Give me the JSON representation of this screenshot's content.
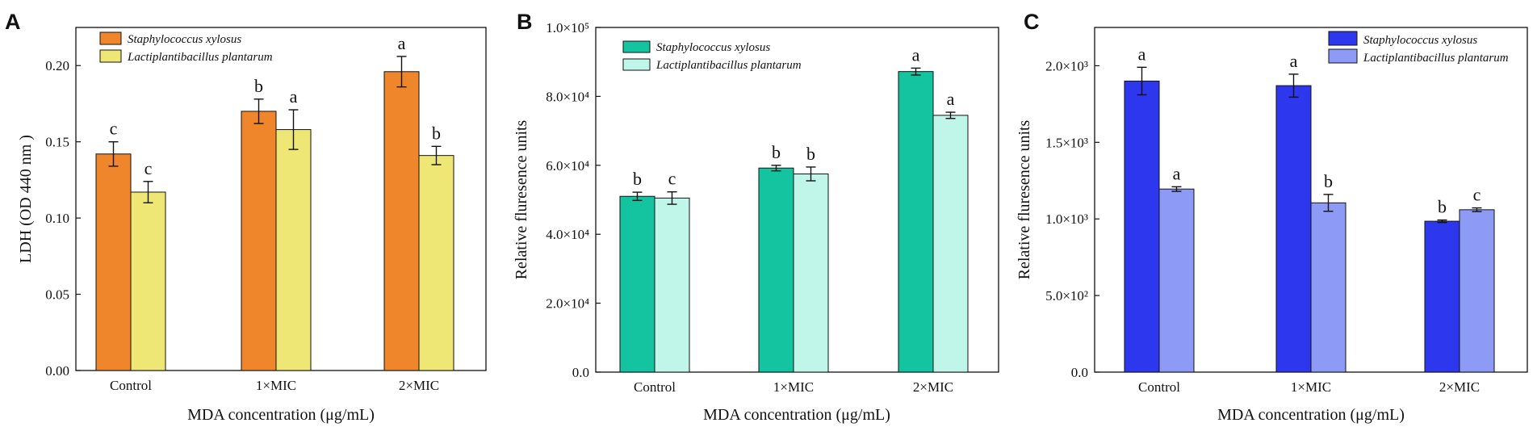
{
  "chart_data": [
    {
      "panel": "A",
      "type": "bar",
      "categories": [
        "Control",
        "1×MIC",
        "2×MIC"
      ],
      "xlabel": "MDA concentration (μg/mL)",
      "ylabel": "LDH (OD 440 nm )",
      "ylim": [
        0,
        0.225
      ],
      "yticks": [
        {
          "value": 0,
          "label": "0.00"
        },
        {
          "value": 0.05,
          "label": "0.05"
        },
        {
          "value": 0.1,
          "label": "0.10"
        },
        {
          "value": 0.15,
          "label": "0.15"
        },
        {
          "value": 0.2,
          "label": "0.20"
        }
      ],
      "legend_position": "top-left",
      "series": [
        {
          "name": "Staphylococcus xylosus",
          "color": "#f0862c",
          "values": [
            0.142,
            0.17,
            0.196
          ],
          "errors": [
            0.008,
            0.008,
            0.01
          ],
          "letters": [
            "c",
            "b",
            "a"
          ]
        },
        {
          "name": "Lactiplantibacillus plantarum",
          "color": "#efe775",
          "values": [
            0.117,
            0.158,
            0.141
          ],
          "errors": [
            0.007,
            0.013,
            0.006
          ],
          "letters": [
            "c",
            "a",
            "b"
          ]
        }
      ]
    },
    {
      "panel": "B",
      "type": "bar",
      "categories": [
        "Control",
        "1×MIC",
        "2×MIC"
      ],
      "xlabel": "MDA concentration (μg/mL)",
      "ylabel": "Relative fluresence units",
      "ylim": [
        0,
        100000
      ],
      "yticks": [
        {
          "value": 0,
          "label": "0.0"
        },
        {
          "value": 20000,
          "label": "2.0×10⁴"
        },
        {
          "value": 40000,
          "label": "4.0×10⁴"
        },
        {
          "value": 60000,
          "label": "6.0×10⁴"
        },
        {
          "value": 80000,
          "label": "8.0×10⁴"
        },
        {
          "value": 100000,
          "label": "1.0×10⁵"
        }
      ],
      "legend_position": "top-left",
      "series": [
        {
          "name": "Staphylococcus xylosus",
          "color": "#14c4a0",
          "values": [
            51000,
            59200,
            87200
          ],
          "errors": [
            1200,
            800,
            1000
          ],
          "letters": [
            "b",
            "b",
            "a"
          ]
        },
        {
          "name": "Lactiplantibacillus plantarum",
          "color": "#c0f5e9",
          "values": [
            50500,
            57500,
            74500
          ],
          "errors": [
            1800,
            2000,
            900
          ],
          "letters": [
            "c",
            "b",
            "a"
          ]
        }
      ]
    },
    {
      "panel": "C",
      "type": "bar",
      "categories": [
        "Control",
        "1×MIC",
        "2×MIC"
      ],
      "xlabel": "MDA concentration (μg/mL)",
      "ylabel": "Relative fluresence units",
      "ylim": [
        0,
        2250
      ],
      "yticks": [
        {
          "value": 0,
          "label": "0.0"
        },
        {
          "value": 500,
          "label": "5.0×10²"
        },
        {
          "value": 1000,
          "label": "1.0×10³"
        },
        {
          "value": 1500,
          "label": "1.5×10³"
        },
        {
          "value": 2000,
          "label": "2.0×10³"
        }
      ],
      "legend_position": "top-right",
      "series": [
        {
          "name": "Staphylococcus xylosus",
          "color": "#2c37ee",
          "values": [
            1900,
            1870,
            985
          ],
          "errors": [
            90,
            75,
            8
          ],
          "letters": [
            "a",
            "a",
            "b"
          ]
        },
        {
          "name": "Lactiplantibacillus plantarum",
          "color": "#8d9bf6",
          "values": [
            1195,
            1105,
            1060
          ],
          "errors": [
            15,
            55,
            12
          ],
          "letters": [
            "a",
            "b",
            "c"
          ]
        }
      ]
    }
  ]
}
